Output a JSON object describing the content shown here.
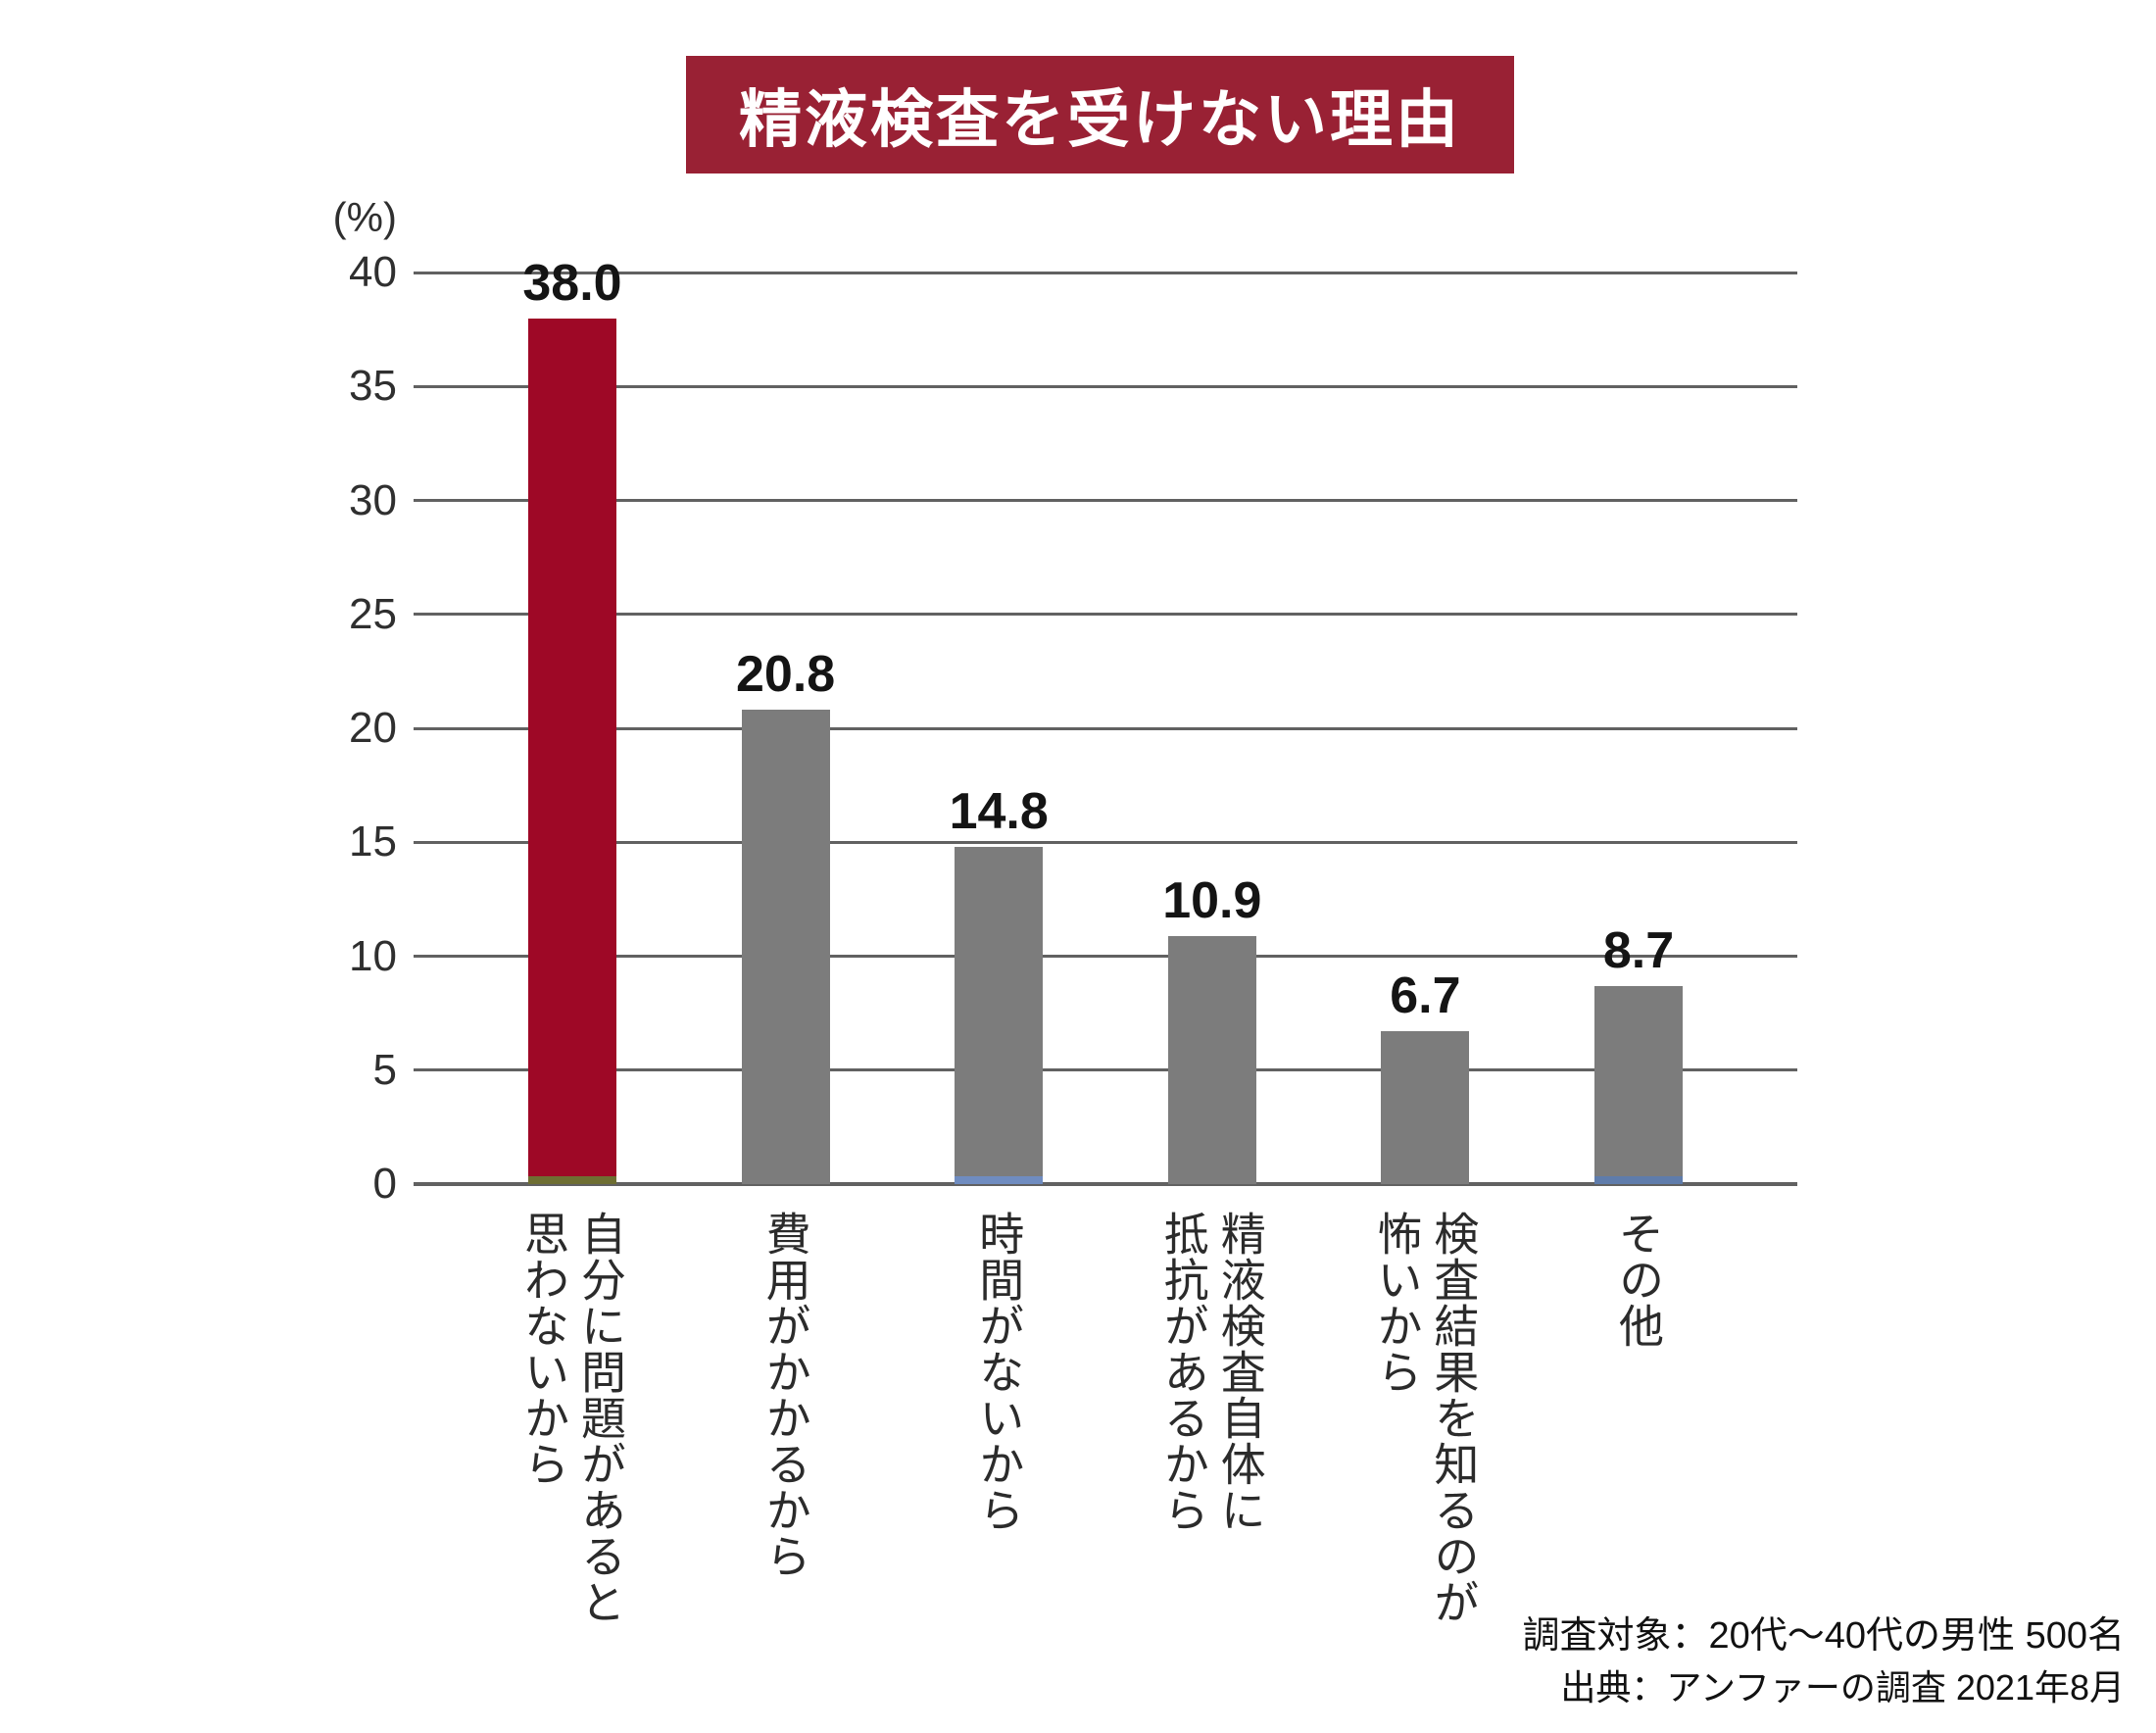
{
  "title_banner": {
    "text": "精液検査を受けない理由",
    "bg_color": "#992134",
    "text_color": "#ffffff"
  },
  "y_axis": {
    "unit_label": "(%)",
    "ticks": [
      "0",
      "5",
      "10",
      "15",
      "20",
      "25",
      "30",
      "35",
      "40"
    ]
  },
  "chart_data": {
    "type": "bar",
    "title": "精液検査を受けない理由",
    "categories": [
      "自分に問題があると思わないから",
      "費用がかかるから",
      "時間がないから",
      "精液検査自体に抵抗があるから",
      "検査結果を知るのが怖いから",
      "その他"
    ],
    "category_lines": [
      [
        "自分に問題があると",
        "思わないから"
      ],
      [
        "費用がかかるから"
      ],
      [
        "時間がないから"
      ],
      [
        "精液検査自体に",
        "抵抗があるから"
      ],
      [
        "検査結果を知るのが",
        "怖いから"
      ],
      [
        "その他"
      ]
    ],
    "values": [
      38.0,
      20.8,
      14.8,
      10.9,
      6.7,
      8.7
    ],
    "value_labels": [
      "38.0",
      "20.8",
      "14.8",
      "10.9",
      "6.7",
      "8.7"
    ],
    "bar_colors": [
      "#9E0826",
      "#7C7C7C",
      "#7C7C7C",
      "#7C7C7C",
      "#7C7C7C",
      "#7C7C7C"
    ],
    "baseline_strips": [
      {
        "bar_index": 0,
        "color": "#6E6E32"
      },
      {
        "bar_index": 2,
        "color": "#6F8CC0"
      },
      {
        "bar_index": 5,
        "color": "#5F7CAB"
      }
    ],
    "ylabel": "(%)",
    "ylim": [
      0,
      40
    ],
    "ytick_step": 5,
    "grid": true,
    "legend": false
  },
  "footer": {
    "line1": "調査対象：20代～40代の男性 500名",
    "line2": "出典：アンファーの調査 2021年8月"
  },
  "colors": {
    "accent_red_bar": "#9E0826",
    "banner_red": "#992134",
    "bar_gray": "#7C7C7C",
    "gridline_gray": "#616161",
    "text_dark": "#141414"
  }
}
